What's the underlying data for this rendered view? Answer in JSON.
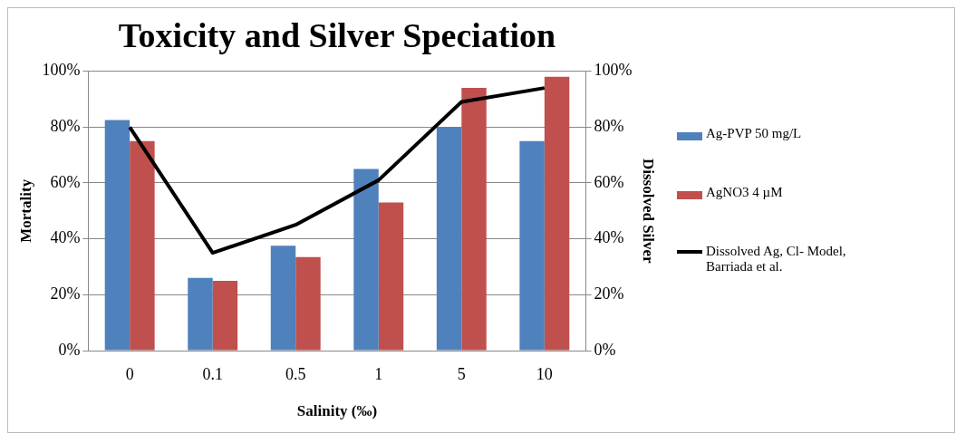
{
  "chart_data": {
    "type": "bar",
    "title": "Toxicity and Silver Speciation",
    "xlabel": "Salinity (‰)",
    "ylabel": "Mortality",
    "y2label": "Dissolved Silver",
    "categories": [
      "0",
      "0.1",
      "0.5",
      "1",
      "5",
      "10"
    ],
    "series": [
      {
        "name": "Ag-PVP 50 mg/L",
        "color": "#4f81bd",
        "values": [
          82.5,
          26,
          37.5,
          65,
          80,
          75
        ]
      },
      {
        "name": "AgNO3 4 µM",
        "color": "#c0504d",
        "values": [
          75,
          25,
          33.5,
          53,
          94,
          98
        ]
      },
      {
        "name": "Dissolved Ag, Cl- Model, Barriada et al.",
        "type": "line",
        "axis": "y2",
        "color": "#000000",
        "values": [
          80,
          35,
          45,
          61,
          89,
          94
        ]
      }
    ],
    "ylim": [
      0,
      100
    ],
    "yticks": [
      {
        "value": 0,
        "label": "0%"
      },
      {
        "value": 20,
        "label": "20%"
      },
      {
        "value": 40,
        "label": "40%"
      },
      {
        "value": 60,
        "label": "60%"
      },
      {
        "value": 80,
        "label": "80%"
      },
      {
        "value": 100,
        "label": "100%"
      }
    ],
    "y2lim": [
      0,
      100
    ],
    "y2ticks": [
      {
        "value": 0,
        "label": "0%"
      },
      {
        "value": 20,
        "label": "20%"
      },
      {
        "value": 40,
        "label": "40%"
      },
      {
        "value": 60,
        "label": "60%"
      },
      {
        "value": 80,
        "label": "80%"
      },
      {
        "value": 100,
        "label": "100%"
      }
    ],
    "grid": "y",
    "legend": "right",
    "marker": "none"
  }
}
